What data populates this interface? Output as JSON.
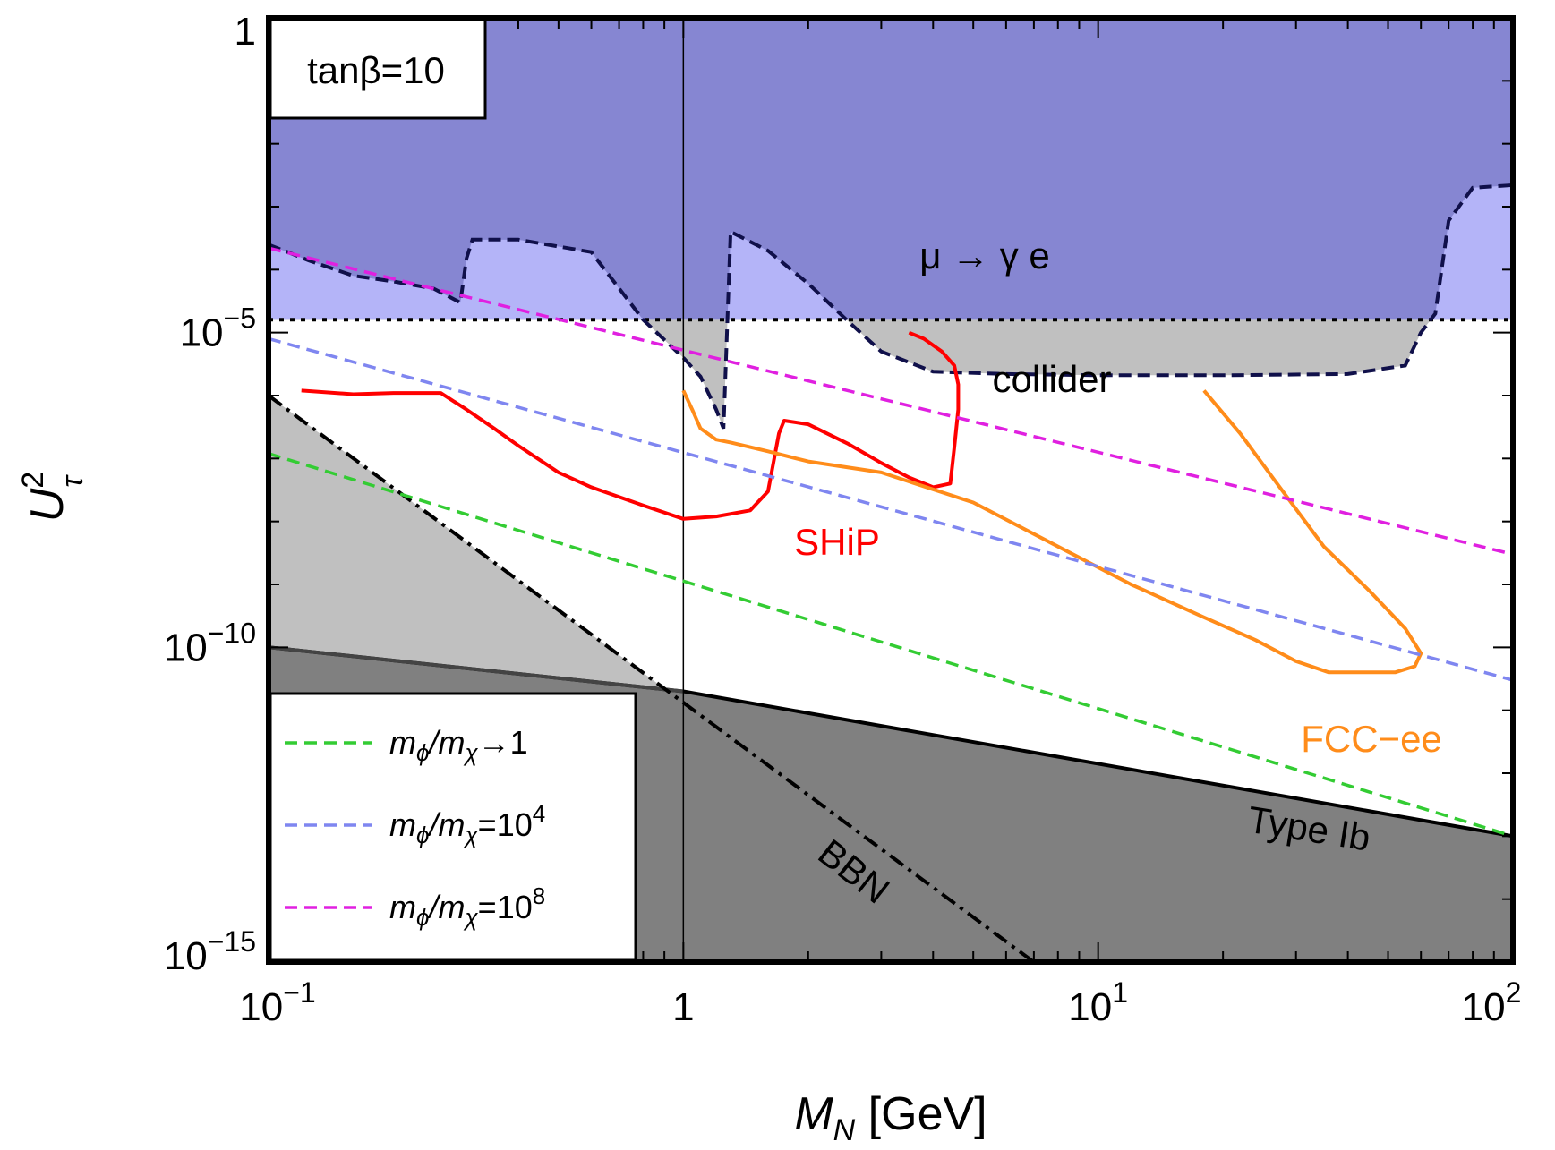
{
  "chart_data": {
    "type": "line",
    "xlabel": "M_N [GeV]",
    "ylabel": "U_τ^2",
    "x_scale": "log",
    "y_scale": "log",
    "xlim": [
      0.1,
      100
    ],
    "ylim": [
      1e-15,
      1
    ],
    "x_ticks": [
      {
        "value": 0.1,
        "base": "10",
        "exp": "−1"
      },
      {
        "value": 1,
        "base": "1",
        "exp": ""
      },
      {
        "value": 10,
        "base": "10",
        "exp": "1"
      },
      {
        "value": 100,
        "base": "10",
        "exp": "2"
      }
    ],
    "y_ticks": [
      {
        "value": 1,
        "base": "1",
        "exp": ""
      },
      {
        "value": 1e-05,
        "base": "10",
        "exp": "−5"
      },
      {
        "value": 1e-10,
        "base": "10",
        "exp": "−10"
      },
      {
        "value": 1e-15,
        "base": "10",
        "exp": "−15"
      }
    ],
    "tag": "tanβ=10",
    "colors": {
      "mu_region": "#8686d2",
      "mu_light": "#b4b4f8",
      "collider": "#c0c0c0",
      "bbn": "#c0c0c0",
      "typeIb": "#808080",
      "ship": "#ff0000",
      "fcc": "#ff8c1a",
      "green": "#33cc33",
      "blue": "#7f86f0",
      "magenta": "#e020e0"
    },
    "regions": {
      "mu_to_gamma_e": {
        "label": "μ → γ e",
        "bound": 1.6e-05,
        "dashed_boundary": {
          "x": [
            0.1,
            0.125,
            0.16,
            0.2,
            0.25,
            0.29,
            0.3,
            0.31,
            0.4,
            0.6,
            0.8,
            1.0,
            1.1,
            1.2,
            1.25,
            1.3,
            1.6,
            2.0,
            2.5,
            3.0,
            4.0,
            6.0,
            10,
            20,
            40,
            55,
            60,
            65,
            70,
            80,
            100
          ],
          "y": [
            0.00025,
            0.00014,
            8e-05,
            6.5e-05,
            5e-05,
            3e-05,
            0.00015,
            0.0003,
            0.0003,
            0.00019,
            1.6e-05,
            4e-06,
            2e-06,
            6e-07,
            3e-07,
            0.0004,
            0.0002,
            6e-05,
            1.5e-05,
            5e-06,
            2.4e-06,
            2.2e-06,
            2.1e-06,
            2.1e-06,
            2.2e-06,
            3e-06,
            1e-05,
            2e-05,
            0.0006,
            0.002,
            0.0022
          ]
        }
      },
      "collider": {
        "label": "collider"
      },
      "bbn": {
        "label": "BBN",
        "x": [
          0.1,
          7.0
        ],
        "y": [
          1e-06,
          1e-15
        ]
      },
      "type_ib": {
        "label": "Type Ib",
        "x": [
          0.1,
          1.0,
          100
        ],
        "y": [
          1e-10,
          2e-11,
          1e-13
        ]
      }
    },
    "series": [
      {
        "name": "SHiP",
        "x": [
          0.12,
          0.16,
          0.2,
          0.26,
          0.3,
          0.35,
          0.4,
          0.5,
          0.6,
          0.8,
          1.0,
          1.2,
          1.45,
          1.6,
          1.7,
          1.75,
          2.0,
          2.5,
          3.0,
          3.5,
          4.0,
          4.4,
          4.5,
          4.6,
          4.6,
          4.5,
          4.2,
          3.8,
          3.5
        ],
        "y": [
          1.2e-06,
          1.05e-06,
          1.1e-06,
          1.1e-06,
          6e-07,
          3e-07,
          1.6e-07,
          6e-08,
          3.5e-08,
          1.8e-08,
          1.1e-08,
          1.2e-08,
          1.5e-08,
          3e-08,
          2.5e-07,
          4e-07,
          3.5e-07,
          1.7e-07,
          8.5e-08,
          5e-08,
          3.5e-08,
          4e-08,
          1.5e-07,
          6e-07,
          1.5e-06,
          3e-06,
          5e-06,
          8e-06,
          1e-05
        ]
      },
      {
        "name": "FCC−ee",
        "x": [
          1.0,
          1.05,
          1.1,
          1.2,
          1.3,
          1.6,
          2.0,
          3.0,
          5.0,
          8.0,
          12,
          18,
          24,
          30,
          36,
          44,
          52,
          58,
          60,
          55,
          45,
          35,
          27,
          22,
          18
        ],
        "y": [
          1.2e-06,
          6e-07,
          3e-07,
          2e-07,
          1.8e-07,
          1.3e-07,
          9e-08,
          6e-08,
          2e-08,
          4e-09,
          1e-09,
          3e-10,
          1.3e-10,
          6e-11,
          4e-11,
          4e-11,
          4e-11,
          5e-11,
          8e-11,
          2e-10,
          8e-10,
          4e-09,
          4e-08,
          2.5e-07,
          1.2e-06
        ]
      },
      {
        "name": "m_φ/m_χ→1",
        "legend": {
          "base": "m",
          "sub1": "ϕ",
          "mid": "/m",
          "sub2": "χ",
          "tail": "→1",
          "sup": ""
        },
        "x": [
          0.1,
          100
        ],
        "y": [
          1.2e-07,
          1e-13
        ]
      },
      {
        "name": "m_φ/m_χ=10^4",
        "legend": {
          "base": "m",
          "sub1": "ϕ",
          "mid": "/m",
          "sub2": "χ",
          "tail": "=10",
          "sup": "4"
        },
        "x": [
          0.1,
          100
        ],
        "y": [
          8e-06,
          3e-11
        ]
      },
      {
        "name": "m_φ/m_χ=10^8",
        "legend": {
          "base": "m",
          "sub1": "ϕ",
          "mid": "/m",
          "sub2": "χ",
          "tail": "=10",
          "sup": "8"
        },
        "x": [
          0.1,
          100
        ],
        "y": [
          0.00022,
          3e-09
        ]
      }
    ],
    "vertical_line": 1.0,
    "annotations": {
      "ship": "SHiP",
      "fcc": "FCC−ee",
      "collider": "collider",
      "bbn": "BBN",
      "type_ib": "Type Ib",
      "mu": "μ → γ e"
    },
    "legend_position": "bottom-left"
  }
}
